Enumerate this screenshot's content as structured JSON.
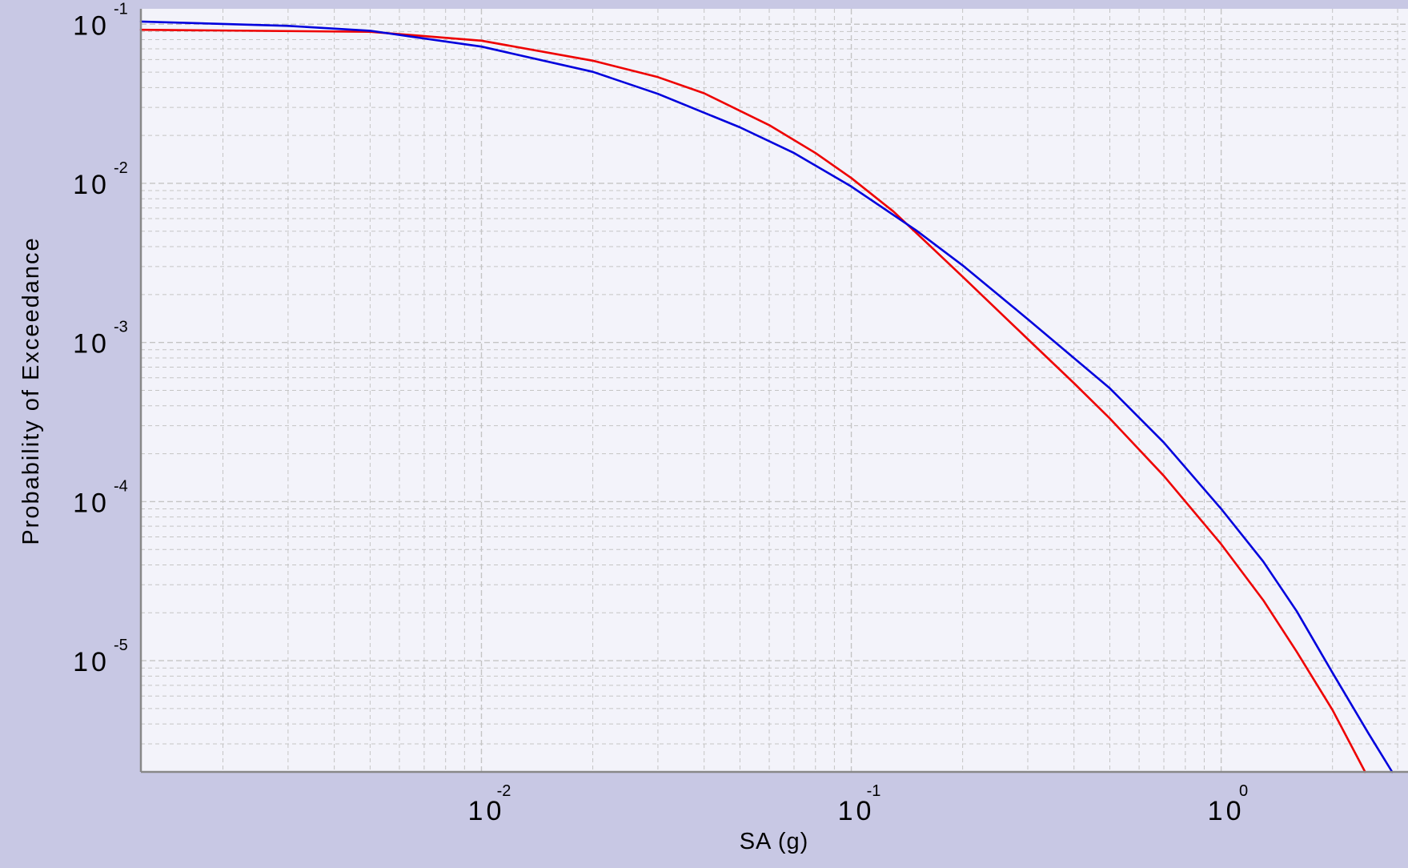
{
  "colors": {
    "page_background": "#c8c8e4",
    "plot_background": "#f3f3fa",
    "grid": "#c4c4c4",
    "axis": "#888888",
    "series_red": "#ee0000",
    "series_blue": "#0000dd"
  },
  "chart_data": {
    "type": "line",
    "title": "",
    "xlabel": "SA (g)",
    "ylabel": "Probability of Exceedance",
    "x_scale": "log",
    "y_scale": "log",
    "xlim": [
      0.0012,
      3.2
    ],
    "ylim": [
      2e-06,
      0.125
    ],
    "grid": true,
    "legend": "none",
    "x_ticks": [
      {
        "value": 0.01,
        "base": "10",
        "exp": "-2"
      },
      {
        "value": 0.1,
        "base": "10",
        "exp": "-1"
      },
      {
        "value": 1,
        "base": "10",
        "exp": "0"
      }
    ],
    "y_ticks": [
      {
        "value": 0.1,
        "base": "10",
        "exp": "-1"
      },
      {
        "value": 0.01,
        "base": "10",
        "exp": "-2"
      },
      {
        "value": 0.001,
        "base": "10",
        "exp": "-3"
      },
      {
        "value": 0.0001,
        "base": "10",
        "exp": "-4"
      },
      {
        "value": 1e-05,
        "base": "10",
        "exp": "-5"
      }
    ],
    "series": [
      {
        "color": "#ee0000",
        "points": [
          [
            0.0012,
            0.0923
          ],
          [
            0.005,
            0.0896
          ],
          [
            0.01,
            0.0788
          ],
          [
            0.02,
            0.059
          ],
          [
            0.03,
            0.0465
          ],
          [
            0.04,
            0.0368
          ],
          [
            0.06,
            0.0232
          ],
          [
            0.08,
            0.0155
          ],
          [
            0.1,
            0.0108
          ],
          [
            0.13,
            0.00665
          ],
          [
            0.16,
            0.00423
          ],
          [
            0.2,
            0.00259
          ],
          [
            0.3,
            0.00105
          ],
          [
            0.4,
            0.000555
          ],
          [
            0.5,
            0.000333
          ],
          [
            0.7,
            0.000145
          ],
          [
            1.0,
            5.4e-05
          ],
          [
            1.3,
            2.4e-05
          ],
          [
            1.6,
            1.14e-05
          ],
          [
            2.0,
            4.9e-06
          ],
          [
            2.45,
            2e-06
          ]
        ]
      },
      {
        "color": "#0000dd",
        "points": [
          [
            0.0012,
            0.104
          ],
          [
            0.003,
            0.0977
          ],
          [
            0.005,
            0.091
          ],
          [
            0.01,
            0.0723
          ],
          [
            0.02,
            0.0502
          ],
          [
            0.03,
            0.0365
          ],
          [
            0.05,
            0.0225
          ],
          [
            0.07,
            0.0155
          ],
          [
            0.1,
            0.00955
          ],
          [
            0.15,
            0.00505
          ],
          [
            0.2,
            0.00305
          ],
          [
            0.3,
            0.0014
          ],
          [
            0.5,
            0.000515
          ],
          [
            0.7,
            0.000235
          ],
          [
            1.0,
            9e-05
          ],
          [
            1.3,
            4.2e-05
          ],
          [
            1.6,
            2.05e-05
          ],
          [
            2.0,
            8.4e-06
          ],
          [
            2.5,
            3.5e-06
          ],
          [
            2.9,
            2e-06
          ]
        ]
      }
    ]
  }
}
